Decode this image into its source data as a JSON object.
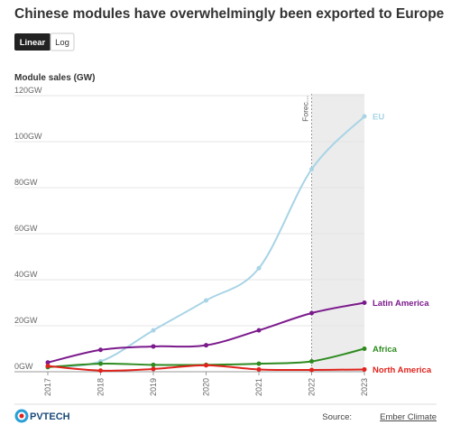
{
  "chart_data": {
    "type": "line",
    "title": "Chinese modules have overwhelmingly been exported to Europe",
    "scale_buttons": [
      "Linear",
      "Log"
    ],
    "y_label": "Module sales (GW)",
    "categories": [
      "2017",
      "2018",
      "2019",
      "2020",
      "2021",
      "2022",
      "2023"
    ],
    "forecast": {
      "label": "Forec...",
      "from": "2022",
      "to": "2023"
    },
    "series": [
      {
        "name": "EU",
        "color": "#a8d4e6",
        "values": [
          2,
          4.5,
          18,
          31,
          45,
          88,
          111
        ]
      },
      {
        "name": "Latin America",
        "color": "#7b1a8c",
        "values": [
          4,
          9.5,
          11,
          11.5,
          18,
          25.5,
          30
        ]
      },
      {
        "name": "Africa",
        "color": "#2e8b1f",
        "values": [
          2,
          3.5,
          3,
          3,
          3.5,
          4.5,
          10
        ]
      },
      {
        "name": "North America",
        "color": "#e0231c",
        "values": [
          2.5,
          0.5,
          1.2,
          2.8,
          1,
          0.8,
          1
        ]
      }
    ],
    "ylim": [
      0,
      120
    ],
    "yticks": [
      {
        "value": 0,
        "label": "0GW"
      },
      {
        "value": 20,
        "label": "20GW"
      },
      {
        "value": 40,
        "label": "40GW"
      },
      {
        "value": 60,
        "label": "60GW"
      },
      {
        "value": 80,
        "label": "80GW"
      },
      {
        "value": 100,
        "label": "100GW"
      },
      {
        "value": 120,
        "label": "120GW"
      }
    ],
    "grid": true,
    "source_prefix": "Source:",
    "source": "Ember Climate",
    "logo": "PVTECH"
  }
}
